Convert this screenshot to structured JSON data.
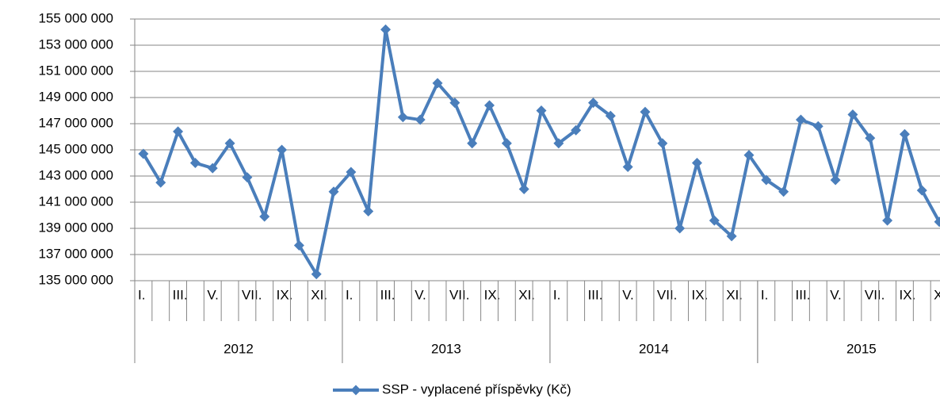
{
  "chart_data": {
    "type": "line",
    "categories": [
      "I.",
      null,
      "III.",
      null,
      "V.",
      null,
      "VII.",
      null,
      "IX.",
      null,
      "XI.",
      null,
      "I.",
      null,
      "III.",
      null,
      "V.",
      null,
      "VII.",
      null,
      "IX.",
      null,
      "XI.",
      null,
      "I.",
      null,
      "III.",
      null,
      "V.",
      null,
      "VII.",
      null,
      "IX.",
      null,
      "XI.",
      null,
      "I.",
      null,
      "III.",
      null,
      "V.",
      null,
      "VII.",
      null,
      "IX.",
      null,
      "XI."
    ],
    "years": [
      "2012",
      "2013",
      "2014",
      "2015"
    ],
    "series": [
      {
        "name": "SSP - vyplacené příspěvky (Kč)",
        "color": "#4a7ebb",
        "values": [
          144700000,
          142500000,
          146400000,
          144000000,
          143600000,
          145500000,
          142900000,
          139900000,
          145000000,
          137700000,
          135500000,
          141800000,
          143300000,
          140300000,
          154200000,
          147500000,
          147300000,
          150100000,
          148600000,
          145500000,
          148400000,
          145500000,
          142000000,
          148000000,
          145500000,
          146500000,
          148600000,
          147600000,
          143700000,
          147900000,
          145500000,
          139000000,
          144000000,
          139600000,
          138400000,
          144600000,
          142700000,
          141800000,
          147300000,
          146800000,
          142700000,
          147700000,
          145900000,
          139600000,
          146200000,
          141900000,
          139500000
        ]
      }
    ],
    "ylim": [
      135000000,
      155000000
    ],
    "yticks": [
      {
        "value": 135000000,
        "label": "135 000 000"
      },
      {
        "value": 137000000,
        "label": "137 000 000"
      },
      {
        "value": 139000000,
        "label": "139 000 000"
      },
      {
        "value": 141000000,
        "label": "141 000 000"
      },
      {
        "value": 143000000,
        "label": "143 000 000"
      },
      {
        "value": 145000000,
        "label": "145 000 000"
      },
      {
        "value": 147000000,
        "label": "147 000 000"
      },
      {
        "value": 149000000,
        "label": "149 000 000"
      },
      {
        "value": 151000000,
        "label": "151 000 000"
      },
      {
        "value": 153000000,
        "label": "153 000 000"
      },
      {
        "value": 155000000,
        "label": "155 000 000"
      }
    ],
    "grid": true,
    "legend": "bottom"
  }
}
